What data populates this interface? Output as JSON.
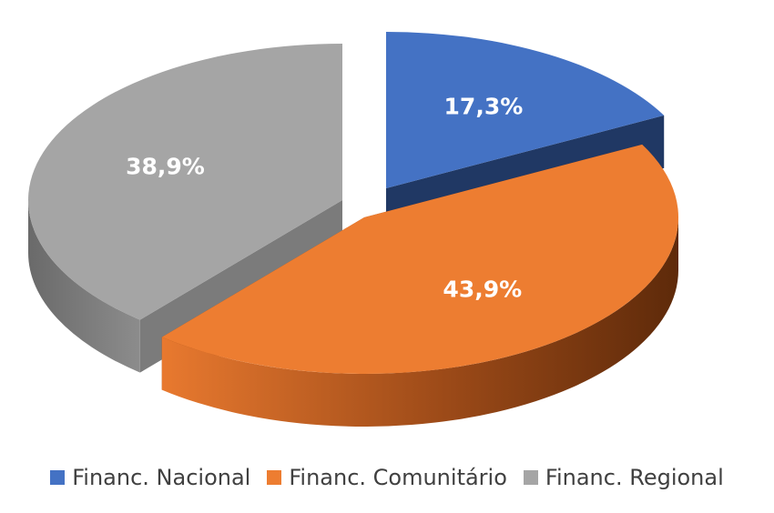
{
  "chart_data": {
    "type": "pie",
    "title": "",
    "categories": [
      "Financ. Nacional",
      "Financ. Comunitário",
      "Financ. Regional"
    ],
    "values": [
      17.3,
      43.9,
      38.9
    ],
    "data_labels": [
      "17,3%",
      "43,9%",
      "38,9%"
    ],
    "colors": [
      "#4472c4",
      "#ed7d31",
      "#a5a5a5"
    ],
    "side_colors": [
      "#203864",
      "#843c0c",
      "#7b7b7b"
    ],
    "exploded": true,
    "three_d": true,
    "legend_position": "bottom"
  }
}
